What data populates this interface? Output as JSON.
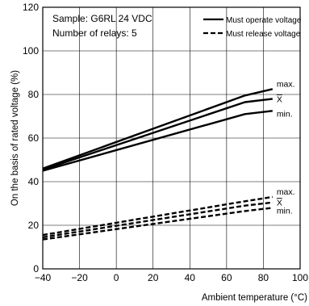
{
  "chart_data": {
    "type": "line",
    "xlabel": "Ambient temperature (°C)",
    "ylabel": "On the basis of rated voltage (%)",
    "xlim": [
      -40,
      100
    ],
    "ylim": [
      0,
      120
    ],
    "x_ticks": [
      -40,
      -20,
      0,
      20,
      40,
      60,
      80,
      100
    ],
    "y_ticks": [
      0,
      20,
      40,
      60,
      80,
      100,
      120
    ],
    "x_tick_labels": [
      "−40",
      "−20",
      "0",
      "20",
      "40",
      "60",
      "80",
      "100"
    ],
    "y_tick_labels": [
      "0",
      "20",
      "40",
      "60",
      "80",
      "100",
      "120"
    ],
    "grid": true,
    "annotations": {
      "sample": "Sample: G6RL 24 VDC",
      "relays": "Number of relays: 5"
    },
    "legend": {
      "position": "top-right",
      "entries": [
        {
          "label": "Must operate voltage",
          "style": "solid"
        },
        {
          "label": "Must release voltage",
          "style": "dashed"
        }
      ]
    },
    "series": [
      {
        "group": "Must operate voltage",
        "end_label": "max.",
        "style": "solid",
        "x": [
          -40,
          70,
          85
        ],
        "y": [
          46,
          79.5,
          82.5
        ]
      },
      {
        "group": "Must operate voltage",
        "end_label": "X",
        "style": "solid",
        "x": [
          -40,
          70,
          85
        ],
        "y": [
          45.5,
          76.5,
          78
        ]
      },
      {
        "group": "Must operate voltage",
        "end_label": "min.",
        "style": "solid",
        "x": [
          -40,
          70,
          85
        ],
        "y": [
          45,
          71,
          72.5
        ]
      },
      {
        "group": "Must release voltage",
        "end_label": "max.",
        "style": "dashed",
        "x": [
          -40,
          70,
          85
        ],
        "y": [
          15.5,
          31,
          33
        ]
      },
      {
        "group": "Must release voltage",
        "end_label": "X",
        "style": "dashed",
        "x": [
          -40,
          70,
          85
        ],
        "y": [
          14.5,
          29,
          30.5
        ]
      },
      {
        "group": "Must release voltage",
        "end_label": "min.",
        "style": "dashed",
        "x": [
          -40,
          70,
          85
        ],
        "y": [
          13.5,
          26.5,
          28
        ]
      }
    ]
  }
}
